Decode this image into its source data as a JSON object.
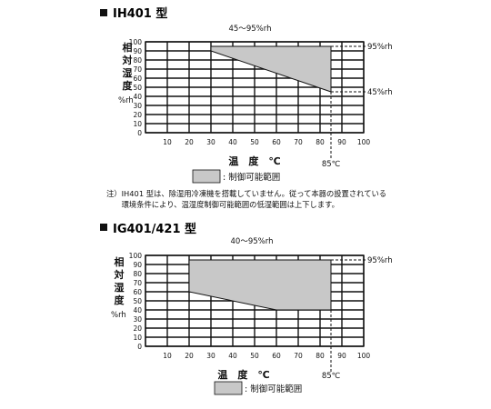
{
  "chart_data": [
    {
      "type": "area",
      "title": "IH401 型",
      "range_label": "45～95%rh",
      "ylabel": "相対湿度",
      "yunit": "%rh",
      "xlabel": "温　度　℃",
      "xticks": [
        10,
        20,
        30,
        40,
        50,
        60,
        70,
        80,
        90,
        100
      ],
      "yticks": [
        0,
        10,
        20,
        30,
        40,
        50,
        60,
        70,
        80,
        90,
        100
      ],
      "xlim": [
        0,
        100
      ],
      "ylim": [
        0,
        100
      ],
      "grid": true,
      "region": {
        "upper": [
          {
            "x": 30,
            "y": 95
          },
          {
            "x": 85,
            "y": 95
          }
        ],
        "lower": [
          {
            "x": 30,
            "y": 90
          },
          {
            "x": 85,
            "y": 45
          }
        ],
        "fill": "#c8c8c8"
      },
      "annotations": [
        {
          "text": "95%rh",
          "x": 85,
          "y": 95
        },
        {
          "text": "45%rh",
          "x": 85,
          "y": 45
        }
      ],
      "vline": {
        "x": 85,
        "label": "85℃"
      },
      "legend": ": 制御可能範囲",
      "note_lines": [
        "注）IH401 型は、除湿用冷凍機を搭載していません。従って本器の設置されている",
        "　　環境条件により、温湿度制御可能範囲の低湿範囲は上下します。"
      ]
    },
    {
      "type": "area",
      "title": "IG401/421 型",
      "range_label": "40～95%rh",
      "ylabel": "相対湿度",
      "yunit": "%rh",
      "xlabel": "温　度　℃",
      "xticks": [
        10,
        20,
        30,
        40,
        50,
        60,
        70,
        80,
        90,
        100
      ],
      "yticks": [
        0,
        10,
        20,
        30,
        40,
        50,
        60,
        70,
        80,
        90,
        100
      ],
      "xlim": [
        0,
        100
      ],
      "ylim": [
        0,
        100
      ],
      "grid": true,
      "region": {
        "upper": [
          {
            "x": 20,
            "y": 95
          },
          {
            "x": 85,
            "y": 95
          }
        ],
        "lower": [
          {
            "x": 20,
            "y": 60
          },
          {
            "x": 60,
            "y": 40
          },
          {
            "x": 85,
            "y": 40
          }
        ],
        "fill": "#c8c8c8"
      },
      "annotations": [
        {
          "text": "95%rh",
          "x": 85,
          "y": 95
        }
      ],
      "vline": {
        "x": 85,
        "label": "85℃"
      },
      "legend": ": 制御可能範囲"
    }
  ]
}
